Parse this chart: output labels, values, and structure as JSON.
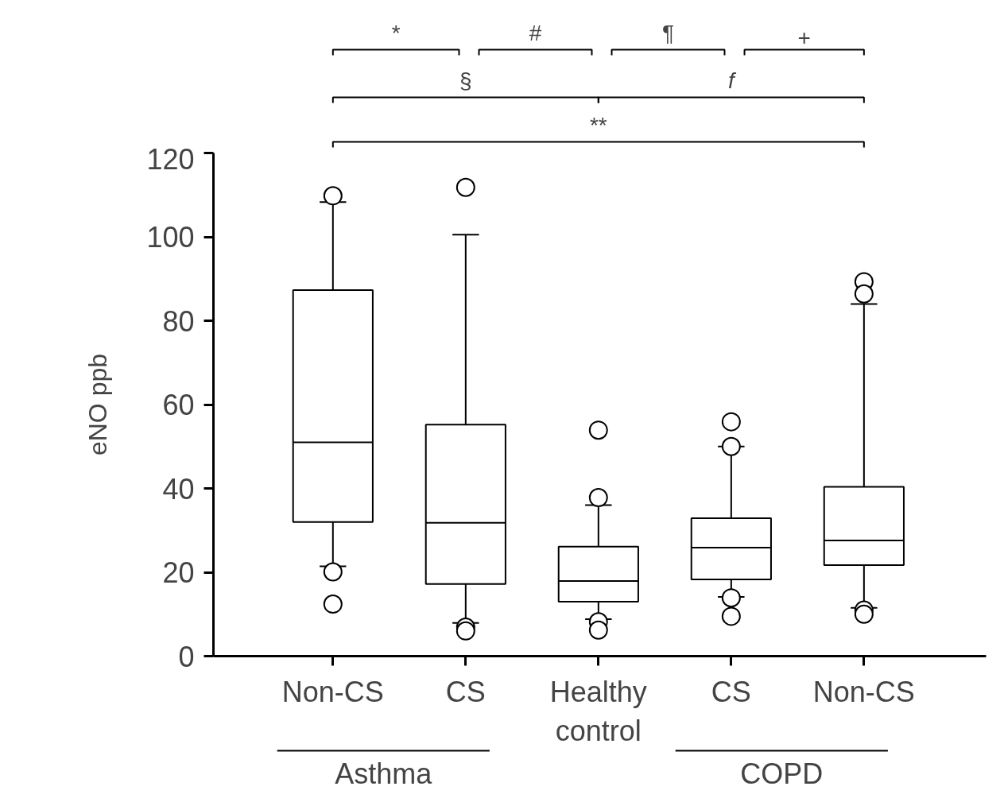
{
  "chart_data": {
    "type": "box",
    "ylabel": "eNO ppb",
    "categories": [
      "Non-CS",
      "CS",
      "Healthy control",
      "CS",
      "Non-CS"
    ],
    "boxes": [
      {
        "low": 21.4,
        "q1": 32,
        "median": 51,
        "q3": 87.3,
        "high": 108.3,
        "outliers": [
          109.8,
          20.1,
          12.4
        ]
      },
      {
        "low": 7.9,
        "q1": 17.2,
        "median": 31.8,
        "q3": 55.2,
        "high": 100.5,
        "outliers": [
          111.8,
          6.9,
          6.0
        ]
      },
      {
        "low": 8.8,
        "q1": 13.0,
        "median": 17.9,
        "q3": 26.1,
        "high": 36,
        "outliers": [
          53.9,
          37.8,
          8.2,
          6.2
        ]
      },
      {
        "low": 14.1,
        "q1": 18.3,
        "median": 25.9,
        "q3": 32.9,
        "high": 50,
        "outliers": [
          55.9,
          50,
          13.9,
          9.5
        ]
      },
      {
        "low": 11.5,
        "q1": 21.7,
        "median": 27.6,
        "q3": 40.4,
        "high": 84,
        "outliers": [
          89.3,
          86.4,
          11,
          10
        ]
      }
    ],
    "ylim": [
      0,
      120
    ],
    "yticks": [
      0,
      20,
      40,
      60,
      80,
      100,
      120
    ],
    "grid": false,
    "annotations": [
      "*",
      "#",
      "¶",
      "+",
      "§",
      "f",
      "**",
      "Asthma",
      "COPD"
    ]
  }
}
